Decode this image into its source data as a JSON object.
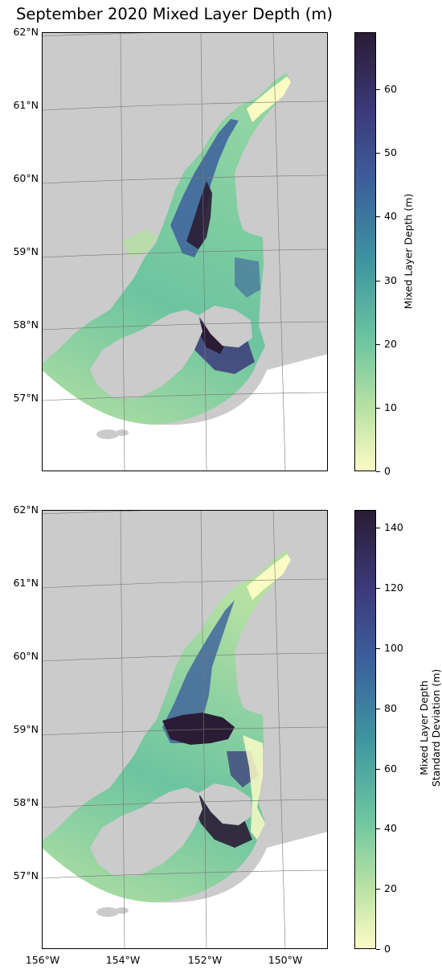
{
  "title": "September 2020 Mixed Layer Depth (m)",
  "colors": {
    "land": "#cbcbcb",
    "graticule": "#777777",
    "colormap": [
      "#fbfbc4",
      "#b4e0a3",
      "#6cc4a0",
      "#3e94a0",
      "#3c5f9c",
      "#3c3a7b",
      "#2a1c34"
    ]
  },
  "lat_labels": [
    "62°N",
    "61°N",
    "60°N",
    "59°N",
    "58°N",
    "57°N"
  ],
  "lon_labels": [
    "156°W",
    "154°W",
    "152°W",
    "150°W"
  ],
  "panels": [
    {
      "colorbar_label": "Mixed Layer Depth (m)",
      "colorbar_ticks": [
        "0",
        "10",
        "20",
        "30",
        "40",
        "50",
        "60"
      ],
      "colorbar_range": [
        0,
        69
      ]
    },
    {
      "colorbar_label": "Mixed Layer Depth\nStandard Deviation (m)",
      "colorbar_label_line1": "Mixed Layer Depth",
      "colorbar_label_line2": "Standard Deviation (m)",
      "colorbar_ticks": [
        "0",
        "20",
        "40",
        "60",
        "80",
        "100",
        "120",
        "140"
      ],
      "colorbar_range": [
        0,
        146
      ]
    }
  ]
}
